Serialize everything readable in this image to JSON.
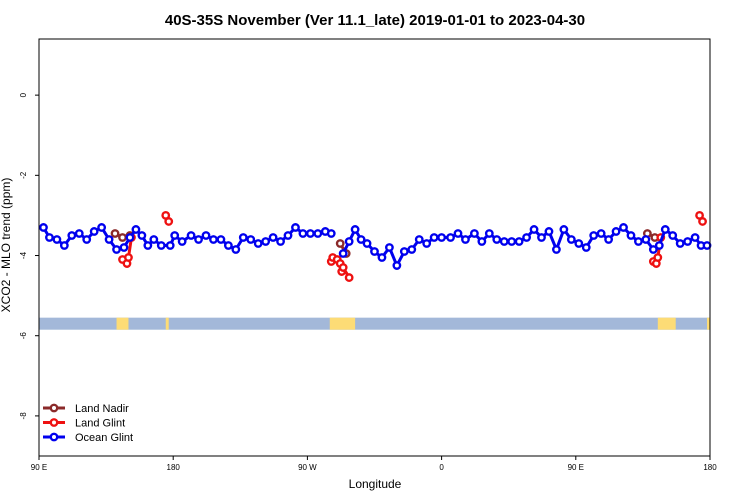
{
  "chart_data": {
    "type": "line",
    "title": "40S-35S November (Ver 11.1_late)   2019-01-01 to 2023-04-30",
    "xlabel": "Longitude",
    "ylabel": "XCO2 - MLO trend (ppm)",
    "x_ticks": [
      {
        "value": 90,
        "label": "90 E"
      },
      {
        "value": 180,
        "label": "180"
      },
      {
        "value": 270,
        "label": "90 W"
      },
      {
        "value": 360,
        "label": "0"
      },
      {
        "value": 450,
        "label": "90 E"
      },
      {
        "value": 540,
        "label": "180"
      }
    ],
    "y_ticks": [
      {
        "value": 0,
        "label": "0"
      },
      {
        "value": -2,
        "label": "-2"
      },
      {
        "value": -4,
        "label": "-4"
      },
      {
        "value": -6,
        "label": "-6"
      },
      {
        "value": -8,
        "label": "-8"
      }
    ],
    "xlim": [
      90,
      540
    ],
    "ylim": [
      -9,
      1.4
    ],
    "legend_position": "bottom-left",
    "land_strip_y": [
      -5.85,
      -5.55
    ],
    "land_segments": [
      [
        142,
        150
      ],
      [
        175,
        177
      ],
      [
        285,
        302
      ],
      [
        505,
        517
      ],
      [
        538,
        540
      ]
    ],
    "colors": {
      "land_nadir": "#8b2a2a",
      "land_glint": "#ee1111",
      "ocean_glint": "#0000ee",
      "ocean_strip": "#a3b8d9",
      "land_strip": "#fddc76"
    },
    "series": [
      {
        "name": "Land Nadir",
        "segments": [
          [
            [
              141,
              -3.45
            ],
            [
              146,
              -3.55
            ],
            [
              151,
              -3.5
            ]
          ],
          [
            [
              292,
              -3.7
            ],
            [
              296,
              -3.95
            ]
          ],
          [
            [
              498,
              -3.45
            ],
            [
              503,
              -3.55
            ]
          ]
        ]
      },
      {
        "name": "Land Glint",
        "segments": [
          [
            [
              146,
              -4.1
            ],
            [
              149,
              -4.2
            ],
            [
              150,
              -4.05
            ],
            [
              152,
              -3.55
            ]
          ],
          [
            [
              175,
              -3.0
            ],
            [
              177,
              -3.15
            ]
          ],
          [
            [
              286,
              -4.15
            ],
            [
              287,
              -4.05
            ],
            [
              290,
              -4.1
            ],
            [
              292,
              -4.2
            ],
            [
              293,
              -4.4
            ],
            [
              294,
              -4.3
            ],
            [
              298,
              -4.55
            ]
          ],
          [
            [
              502,
              -4.15
            ],
            [
              504,
              -4.2
            ],
            [
              505,
              -4.05
            ],
            [
              507,
              -3.55
            ]
          ],
          [
            [
              533,
              -3.0
            ],
            [
              535,
              -3.15
            ]
          ]
        ]
      },
      {
        "name": "Ocean Glint",
        "segments": [
          [
            [
              93,
              -3.3
            ],
            [
              97,
              -3.55
            ],
            [
              102,
              -3.6
            ],
            [
              107,
              -3.75
            ],
            [
              112,
              -3.5
            ],
            [
              117,
              -3.45
            ],
            [
              122,
              -3.6
            ],
            [
              127,
              -3.4
            ],
            [
              132,
              -3.3
            ],
            [
              137,
              -3.6
            ],
            [
              142,
              -3.85
            ],
            [
              147,
              -3.8
            ],
            [
              151,
              -3.55
            ],
            [
              155,
              -3.35
            ],
            [
              159,
              -3.5
            ],
            [
              163,
              -3.75
            ],
            [
              167,
              -3.6
            ],
            [
              172,
              -3.75
            ],
            [
              178,
              -3.75
            ],
            [
              181,
              -3.5
            ],
            [
              186,
              -3.65
            ],
            [
              192,
              -3.5
            ],
            [
              197,
              -3.6
            ],
            [
              202,
              -3.5
            ],
            [
              207,
              -3.6
            ],
            [
              212,
              -3.6
            ],
            [
              217,
              -3.75
            ],
            [
              222,
              -3.85
            ],
            [
              227,
              -3.55
            ],
            [
              232,
              -3.6
            ],
            [
              237,
              -3.7
            ],
            [
              242,
              -3.65
            ],
            [
              247,
              -3.55
            ],
            [
              252,
              -3.65
            ],
            [
              257,
              -3.5
            ],
            [
              262,
              -3.3
            ],
            [
              267,
              -3.45
            ],
            [
              272,
              -3.45
            ],
            [
              277,
              -3.45
            ],
            [
              282,
              -3.4
            ],
            [
              286,
              -3.45
            ]
          ],
          [
            [
              294,
              -3.95
            ],
            [
              298,
              -3.65
            ],
            [
              302,
              -3.35
            ],
            [
              306,
              -3.6
            ],
            [
              310,
              -3.7
            ],
            [
              315,
              -3.9
            ],
            [
              320,
              -4.05
            ],
            [
              325,
              -3.8
            ],
            [
              330,
              -4.25
            ],
            [
              335,
              -3.9
            ],
            [
              340,
              -3.85
            ],
            [
              345,
              -3.6
            ],
            [
              350,
              -3.7
            ],
            [
              355,
              -3.55
            ],
            [
              360,
              -3.55
            ],
            [
              366,
              -3.55
            ],
            [
              371,
              -3.45
            ],
            [
              376,
              -3.6
            ],
            [
              382,
              -3.45
            ],
            [
              387,
              -3.65
            ],
            [
              392,
              -3.45
            ],
            [
              397,
              -3.6
            ],
            [
              402,
              -3.65
            ],
            [
              407,
              -3.65
            ],
            [
              412,
              -3.65
            ],
            [
              417,
              -3.55
            ],
            [
              422,
              -3.35
            ],
            [
              427,
              -3.55
            ],
            [
              432,
              -3.4
            ],
            [
              437,
              -3.85
            ],
            [
              442,
              -3.35
            ],
            [
              447,
              -3.6
            ],
            [
              452,
              -3.7
            ],
            [
              457,
              -3.8
            ],
            [
              462,
              -3.5
            ],
            [
              467,
              -3.45
            ],
            [
              472,
              -3.6
            ],
            [
              477,
              -3.4
            ],
            [
              482,
              -3.3
            ],
            [
              487,
              -3.5
            ],
            [
              492,
              -3.65
            ],
            [
              497,
              -3.6
            ],
            [
              502,
              -3.85
            ],
            [
              506,
              -3.75
            ],
            [
              510,
              -3.35
            ],
            [
              515,
              -3.5
            ],
            [
              520,
              -3.7
            ],
            [
              525,
              -3.65
            ],
            [
              530,
              -3.55
            ],
            [
              534,
              -3.75
            ],
            [
              538,
              -3.75
            ]
          ]
        ]
      }
    ]
  }
}
